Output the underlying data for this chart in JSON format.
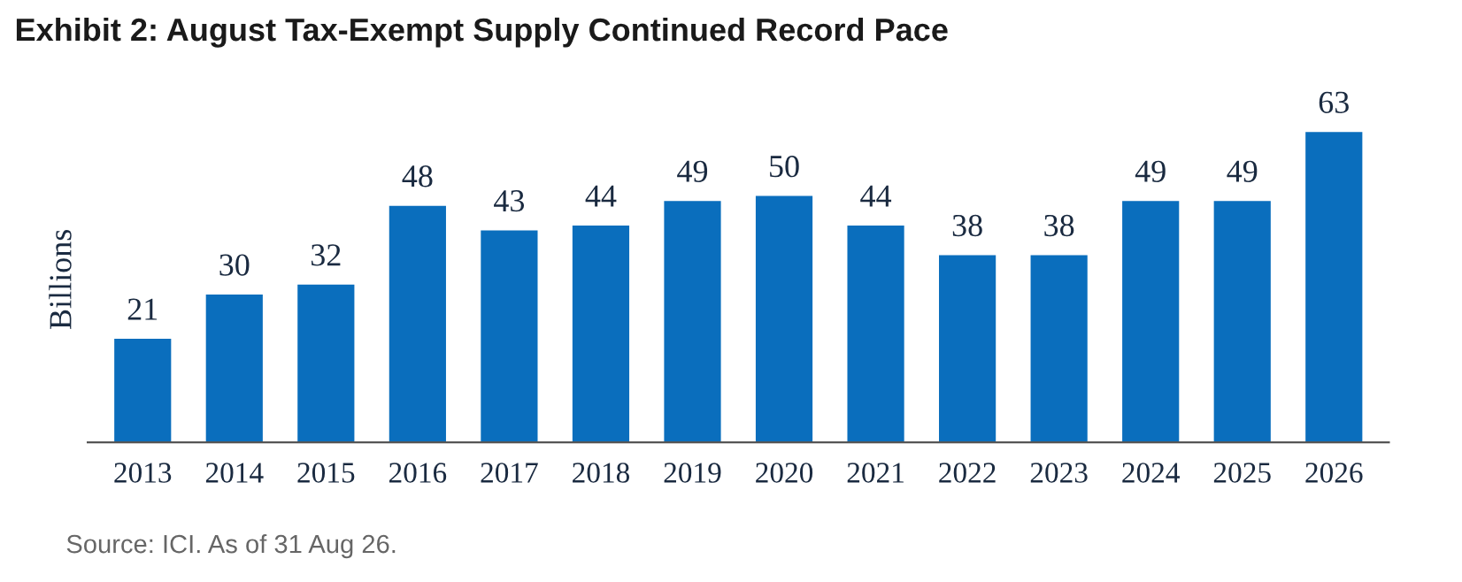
{
  "chart_data": {
    "type": "bar",
    "title": "Exhibit 2: August Tax-Exempt Supply Continued Record Pace",
    "ylabel": "Billions",
    "categories": [
      "2013",
      "2014",
      "2015",
      "2016",
      "2017",
      "2018",
      "2019",
      "2020",
      "2021",
      "2022",
      "2023",
      "2024",
      "2025",
      "2026"
    ],
    "values": [
      21,
      30,
      32,
      48,
      43,
      44,
      49,
      50,
      44,
      38,
      38,
      49,
      49,
      63
    ],
    "color": "#0a6ebd",
    "data_labels": true,
    "grid": false,
    "legend": false,
    "annotations": [
      "Source: ICI. As of 31 Aug 26."
    ]
  }
}
